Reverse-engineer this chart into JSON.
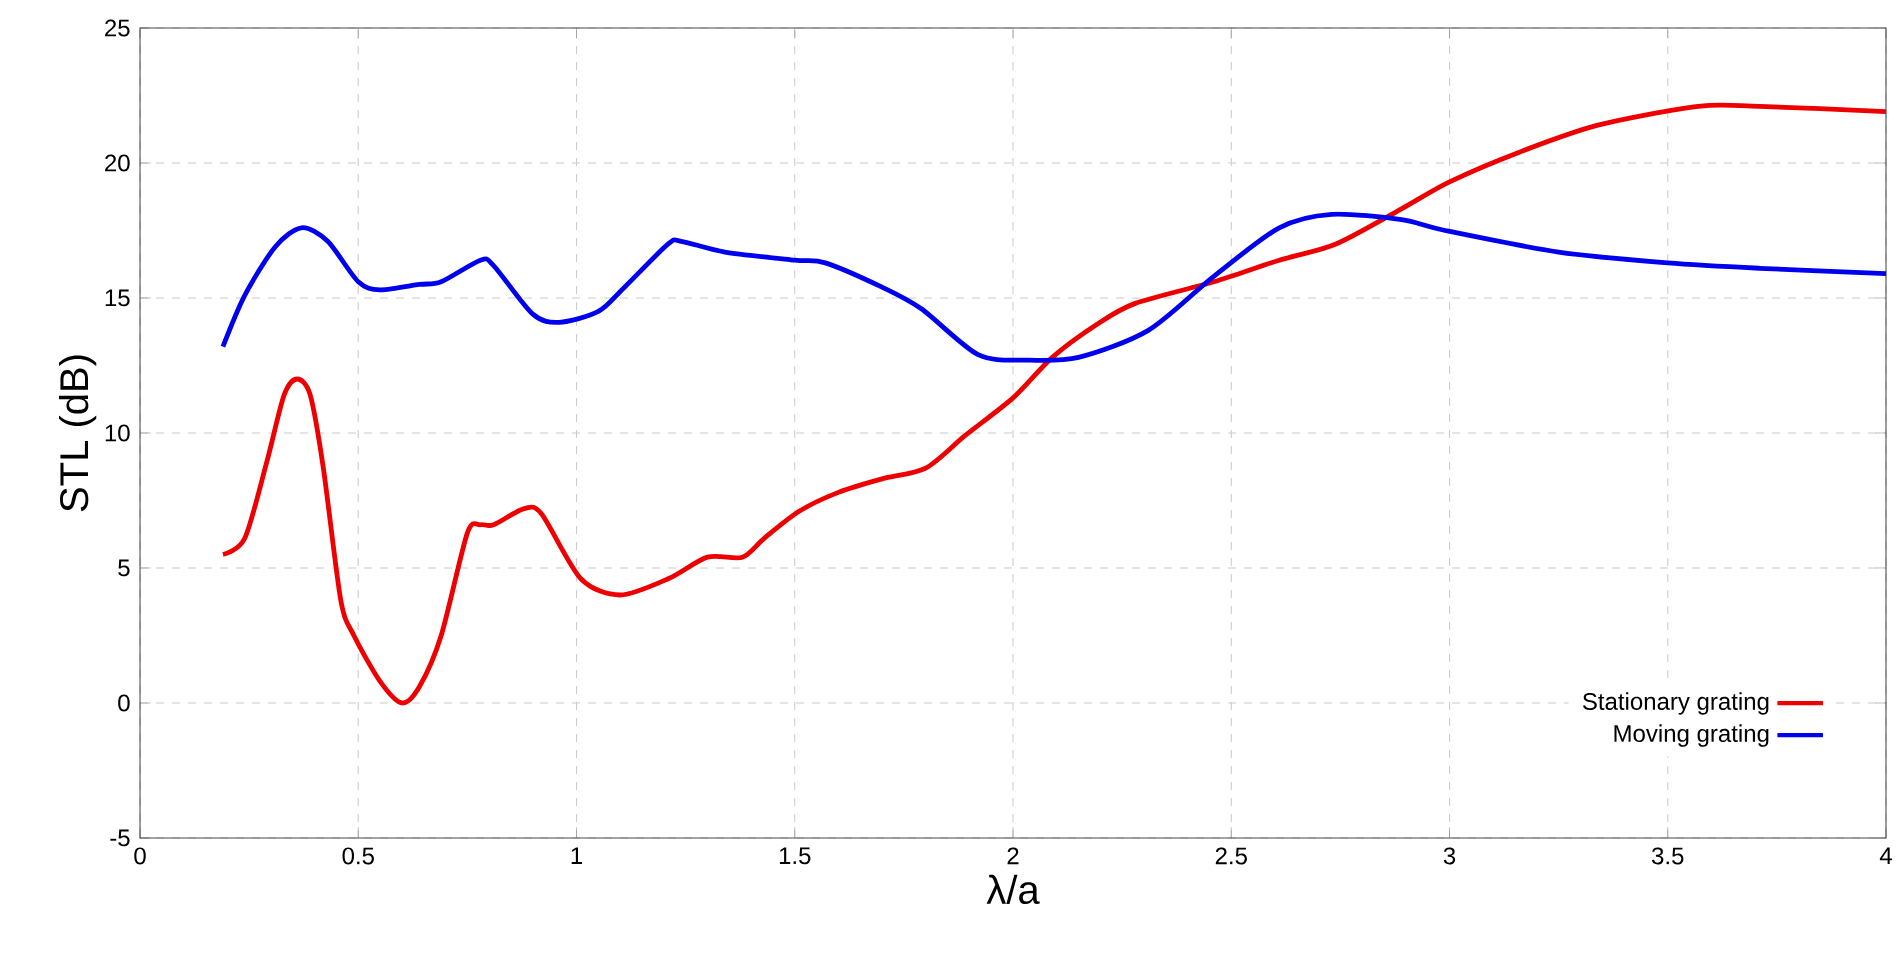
{
  "chart_data": {
    "type": "line",
    "xlabel": "λ/a",
    "ylabel": "STL (dB)",
    "xlim": [
      0,
      4
    ],
    "ylim": [
      -5,
      25
    ],
    "xticks": [
      0,
      0.5,
      1,
      1.5,
      2,
      2.5,
      3,
      3.5,
      4
    ],
    "yticks": [
      -5,
      0,
      5,
      10,
      15,
      20,
      25
    ],
    "grid": true,
    "legend": "bottom right",
    "marker": "none",
    "line_style": "solid",
    "series": [
      {
        "name": "Stationary grating",
        "color": "#ee0000",
        "x": [
          0.19,
          0.24,
          0.29,
          0.33,
          0.36,
          0.39,
          0.42,
          0.46,
          0.49,
          0.55,
          0.6,
          0.64,
          0.69,
          0.75,
          0.78,
          0.81,
          0.88,
          0.92,
          1.01,
          1.1,
          1.21,
          1.3,
          1.38,
          1.43,
          1.51,
          1.6,
          1.7,
          1.8,
          1.89,
          2.0,
          2.09,
          2.19,
          2.28,
          2.46,
          2.61,
          2.74,
          2.89,
          3.0,
          3.16,
          3.34,
          3.57,
          3.71,
          4.0
        ],
        "values": [
          5.5,
          6.1,
          8.9,
          11.4,
          12.0,
          11.4,
          8.7,
          3.8,
          2.5,
          0.8,
          0.0,
          0.6,
          2.5,
          6.3,
          6.6,
          6.6,
          7.2,
          7.0,
          4.6,
          4.0,
          4.6,
          5.4,
          5.4,
          6.1,
          7.1,
          7.8,
          8.3,
          8.7,
          9.9,
          11.3,
          12.8,
          14.0,
          14.8,
          15.6,
          16.4,
          17.0,
          18.3,
          19.3,
          20.4,
          21.4,
          22.1,
          22.1,
          21.9
        ]
      },
      {
        "name": "Moving grating",
        "color": "#0000ee",
        "x": [
          0.19,
          0.24,
          0.31,
          0.37,
          0.43,
          0.5,
          0.55,
          0.64,
          0.69,
          0.78,
          0.81,
          0.9,
          0.96,
          1.05,
          1.11,
          1.21,
          1.24,
          1.34,
          1.5,
          1.57,
          1.7,
          1.79,
          1.92,
          2.03,
          2.15,
          2.31,
          2.46,
          2.61,
          2.73,
          2.89,
          2.99,
          3.25,
          3.5,
          3.71,
          4.0
        ],
        "values": [
          13.2,
          15.1,
          16.9,
          17.6,
          17.1,
          15.6,
          15.3,
          15.5,
          15.6,
          16.4,
          16.2,
          14.4,
          14.1,
          14.5,
          15.4,
          17.0,
          17.1,
          16.7,
          16.4,
          16.3,
          15.4,
          14.6,
          12.9,
          12.7,
          12.8,
          13.8,
          15.8,
          17.6,
          18.1,
          17.9,
          17.5,
          16.7,
          16.3,
          16.1,
          15.9
        ]
      }
    ]
  }
}
